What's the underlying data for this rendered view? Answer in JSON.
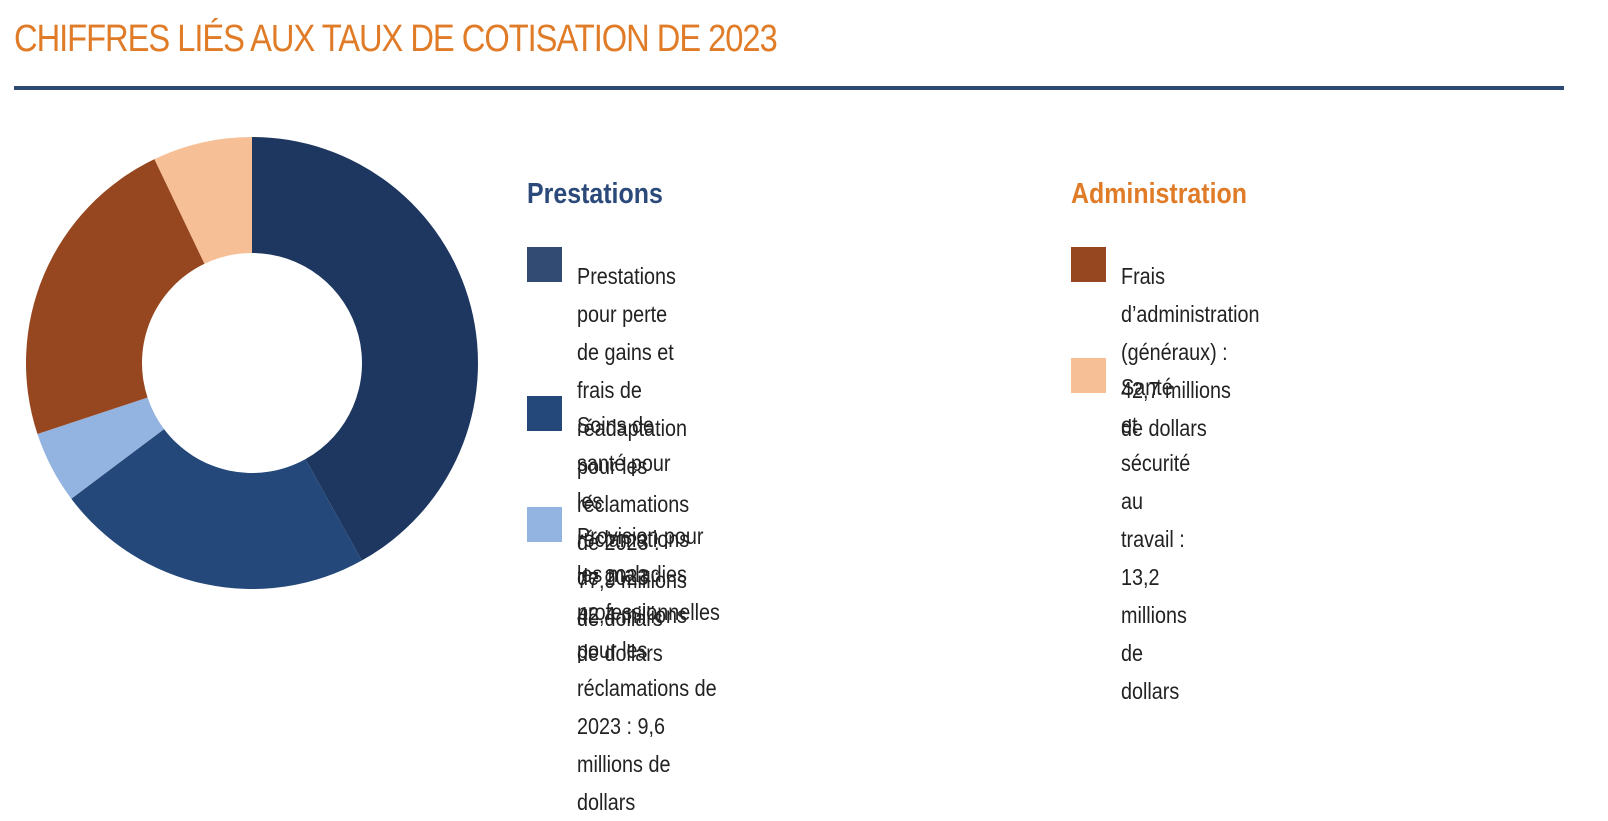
{
  "page": {
    "title": "CHIFFRES LIÉS AUX TAUX DE COTISATION DE 2023"
  },
  "legend": {
    "prestations": {
      "heading": "Prestations",
      "items": [
        {
          "lines": [
            "Prestations pour perte de gains et frais de",
            "réadaptation pour les réclamations de 2023 :",
            "77,9 millions de dollars"
          ],
          "color": "#314b72"
        },
        {
          "lines": [
            "Soins de santé pour les réclamations de 2023 :",
            "42,4 millions de dollars"
          ],
          "color": "#24487a"
        },
        {
          "lines": [
            "Provision pour les maladies professionnelles pour les",
            "réclamations de 2023 : 9,6 millions de dollars"
          ],
          "color": "#93b4e0"
        }
      ]
    },
    "administration": {
      "heading": "Administration",
      "items": [
        {
          "lines": [
            "Frais d’administration (généraux) : 42,7 millions",
            "de dollars"
          ],
          "color": "#97471f"
        },
        {
          "lines": [
            "Santé et sécurité au travail : 13,2 millions",
            "de dollars"
          ],
          "color": "#f7bf96"
        }
      ]
    }
  },
  "chart_data": {
    "type": "pie",
    "donut": true,
    "unit": "millions de dollars",
    "slices": [
      {
        "label": "Prestations pour perte de gains et frais de réadaptation pour les réclamations de 2023",
        "value": 77.9,
        "color": "#1d3760"
      },
      {
        "label": "Soins de santé pour les réclamations de 2023",
        "value": 42.4,
        "color": "#24487a"
      },
      {
        "label": "Provision pour les maladies professionnelles pour les réclamations de 2023",
        "value": 9.6,
        "color": "#93b4e0"
      },
      {
        "label": "Frais d’administration (généraux)",
        "value": 42.7,
        "color": "#97471f"
      },
      {
        "label": "Santé et sécurité au travail",
        "value": 13.2,
        "color": "#f7bf96"
      }
    ]
  }
}
